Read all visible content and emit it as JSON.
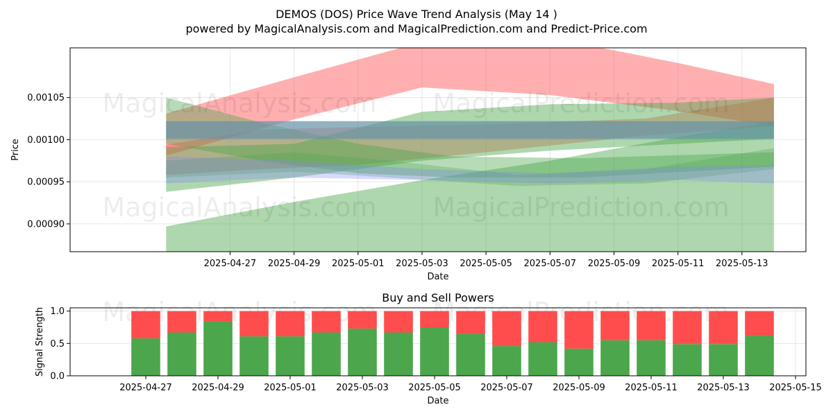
{
  "title": "DEMOS (DOS) Price Wave Trend Analysis (May 14 )",
  "subtitle": "powered by MagicalAnalysis.com and MagicalPrediction.com and Predict-Price.com",
  "watermarks": [
    "MagicalAnalysis.com",
    "MagicalPrediction.com"
  ],
  "colors": {
    "red": "#ff4d4d",
    "green": "#4ca64c",
    "blue": "#8080ff",
    "grid": "#e6e6e6"
  },
  "chart_data": [
    {
      "type": "area",
      "xlabel": "Date",
      "ylabel": "Price",
      "xlim": [
        "2025-04-22",
        "2025-05-15"
      ],
      "ylim": [
        0.000867,
        0.001109
      ],
      "x_ticks": [
        "2025-04-27",
        "2025-04-29",
        "2025-05-01",
        "2025-05-03",
        "2025-05-05",
        "2025-05-07",
        "2025-05-09",
        "2025-05-11",
        "2025-05-13"
      ],
      "y_ticks": [
        0.0009,
        0.00095,
        0.001,
        0.00105
      ],
      "y_tick_labels": [
        "0.00090",
        "0.00095",
        "0.00100",
        "0.00105"
      ],
      "grid": true,
      "bands": [
        {
          "color": "red",
          "opacity": 0.45,
          "x": [
            "2025-04-25",
            "2025-04-29",
            "2025-05-03",
            "2025-05-07",
            "2025-05-11",
            "2025-05-14"
          ],
          "upper": [
            0.001031,
            0.001074,
            0.001116,
            0.001121,
            0.001091,
            0.001066
          ],
          "lower": [
            0.000981,
            0.001024,
            0.001062,
            0.001053,
            0.001034,
            0.001016
          ]
        },
        {
          "color": "red",
          "opacity": 0.4,
          "x": [
            "2025-04-25",
            "2025-04-28",
            "2025-05-01",
            "2025-05-05",
            "2025-05-10",
            "2025-05-14"
          ],
          "upper": [
            0.000994,
            0.001012,
            0.001015,
            0.001018,
            0.001025,
            0.00105
          ],
          "lower": [
            0.000958,
            0.000965,
            0.00097,
            0.000985,
            0.001005,
            0.001016
          ]
        },
        {
          "color": "green",
          "opacity": 0.45,
          "x": [
            "2025-04-25",
            "2025-04-29",
            "2025-05-03",
            "2025-05-07",
            "2025-05-11",
            "2025-05-14"
          ],
          "upper": [
            0.000991,
            0.000995,
            0.001033,
            0.001042,
            0.001044,
            0.00105
          ],
          "lower": [
            0.000938,
            0.000955,
            0.000975,
            0.000987,
            0.000995,
            0.001001
          ]
        },
        {
          "color": "green",
          "opacity": 0.45,
          "x": [
            "2025-04-25",
            "2025-04-29",
            "2025-05-03",
            "2025-05-07",
            "2025-05-11",
            "2025-05-14"
          ],
          "upper": [
            0.000897,
            0.000926,
            0.000952,
            0.000975,
            0.001003,
            0.001022
          ]
        },
        {
          "color": "green",
          "opacity": 0.4,
          "x": [
            "2025-04-25",
            "2025-04-28",
            "2025-05-01",
            "2025-05-04",
            "2025-05-08",
            "2025-05-14"
          ],
          "upper": [
            0.00105,
            0.00102,
            0.000995,
            0.00098,
            0.000978,
            0.000985
          ],
          "lower": [
            0.000995,
            0.000975,
            0.00096,
            0.000955,
            0.000955,
            0.000968
          ]
        },
        {
          "color": "green",
          "opacity": 0.3,
          "x": [
            "2025-04-25",
            "2025-04-29",
            "2025-05-02",
            "2025-05-06",
            "2025-05-10",
            "2025-05-14"
          ],
          "upper": [
            0.000975,
            0.000985,
            0.000975,
            0.000958,
            0.000965,
            0.00099
          ],
          "lower": [
            0.000955,
            0.000962,
            0.000955,
            0.000945,
            0.000948,
            0.000965
          ]
        },
        {
          "color": "blue",
          "opacity": 0.3,
          "x": [
            "2025-04-25",
            "2025-04-29",
            "2025-05-03",
            "2025-05-07",
            "2025-05-11",
            "2025-05-14"
          ],
          "upper": [
            0.00098,
            0.000975,
            0.000965,
            0.00096,
            0.000968,
            0.00097
          ],
          "lower": [
            0.000948,
            0.000955,
            0.000952,
            0.000948,
            0.000952,
            0.000948
          ]
        },
        {
          "color": "blue",
          "opacity": 0.55,
          "x": [
            "2025-04-25",
            "2025-05-14"
          ],
          "upper": [
            0.001022,
            0.001022
          ],
          "lower": [
            0.001001,
            0.001001
          ]
        },
        {
          "color": "green",
          "opacity": 0.35,
          "x": [
            "2025-04-25",
            "2025-05-14"
          ],
          "upper": [
            0.001022,
            0.001022
          ],
          "lower": [
            0.001001,
            0.001001
          ]
        }
      ]
    },
    {
      "type": "bar",
      "title": "Buy and Sell Powers",
      "xlabel": "Date",
      "ylabel": "Signal Strength",
      "xlim": [
        "2025-04-25",
        "2025-05-15"
      ],
      "ylim": [
        0,
        1.05
      ],
      "x_ticks": [
        "2025-04-27",
        "2025-04-29",
        "2025-05-01",
        "2025-05-03",
        "2025-05-05",
        "2025-05-07",
        "2025-05-09",
        "2025-05-11",
        "2025-05-13",
        "2025-05-15"
      ],
      "y_ticks": [
        0,
        0.5,
        1
      ],
      "y_tick_labels": [
        "0.0",
        "0.5",
        "1.0"
      ],
      "grid": true,
      "categories": [
        "2025-04-27",
        "2025-04-28",
        "2025-04-29",
        "2025-04-30",
        "2025-05-01",
        "2025-05-02",
        "2025-05-03",
        "2025-05-04",
        "2025-05-05",
        "2025-05-06",
        "2025-05-07",
        "2025-05-08",
        "2025-05-09",
        "2025-05-10",
        "2025-05-11",
        "2025-05-12",
        "2025-05-13",
        "2025-05-14"
      ],
      "series": [
        {
          "color": "green",
          "values": [
            0.58,
            0.67,
            0.84,
            0.61,
            0.61,
            0.67,
            0.73,
            0.67,
            0.75,
            0.65,
            0.46,
            0.52,
            0.42,
            0.55,
            0.55,
            0.49,
            0.49,
            0.62
          ]
        },
        {
          "color": "red",
          "values": [
            0.42,
            0.33,
            0.16,
            0.39,
            0.39,
            0.33,
            0.27,
            0.33,
            0.25,
            0.35,
            0.54,
            0.48,
            0.58,
            0.45,
            0.45,
            0.51,
            0.51,
            0.38
          ]
        }
      ]
    }
  ]
}
